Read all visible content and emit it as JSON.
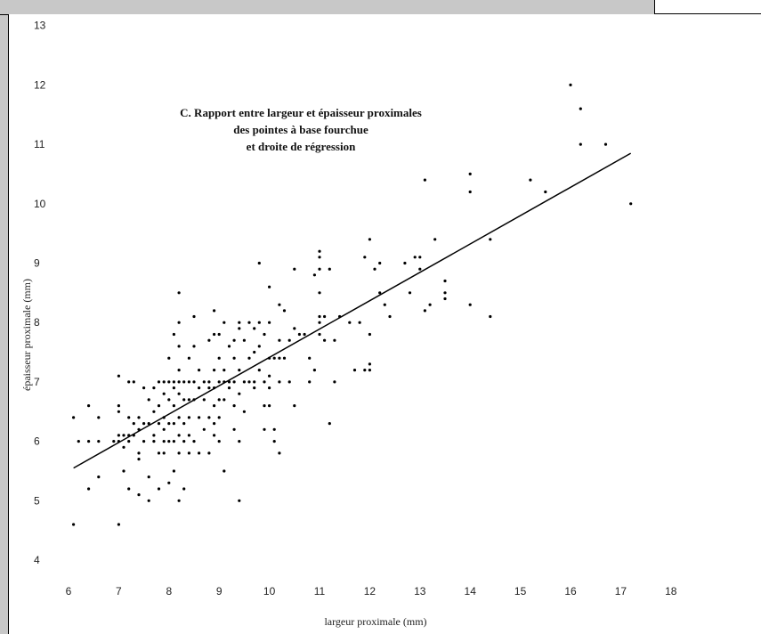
{
  "chart_data": {
    "type": "scatter",
    "title_lines": [
      "C. Rapport entre largeur et épaisseur proximales",
      "des pointes à base fourchue",
      "et droite de régression"
    ],
    "xlabel": "largeur proximale (mm)",
    "ylabel": "épaisseur proximale (mm)",
    "xlim": [
      6,
      18
    ],
    "ylim": [
      4,
      13
    ],
    "xticks": [
      "6",
      "7",
      "8",
      "9",
      "10",
      "11",
      "12",
      "13",
      "14",
      "15",
      "16",
      "17",
      "18"
    ],
    "yticks": [
      "4",
      "5",
      "6",
      "7",
      "8",
      "9",
      "10",
      "11",
      "12",
      "13"
    ],
    "grid": false,
    "regression": {
      "x": [
        6.1,
        17.2
      ],
      "y": [
        5.55,
        10.85
      ]
    },
    "points": [
      [
        6.1,
        6.4
      ],
      [
        6.1,
        4.6
      ],
      [
        6.2,
        6.0
      ],
      [
        6.4,
        6.6
      ],
      [
        6.4,
        6.0
      ],
      [
        6.4,
        5.2
      ],
      [
        6.6,
        6.4
      ],
      [
        6.6,
        5.4
      ],
      [
        6.6,
        6.0
      ],
      [
        6.9,
        6.0
      ],
      [
        7.0,
        7.1
      ],
      [
        7.0,
        6.6
      ],
      [
        7.0,
        6.5
      ],
      [
        7.0,
        6.1
      ],
      [
        7.0,
        6.0
      ],
      [
        7.0,
        4.6
      ],
      [
        7.1,
        6.1
      ],
      [
        7.1,
        5.9
      ],
      [
        7.1,
        5.5
      ],
      [
        7.2,
        7.0
      ],
      [
        7.2,
        6.4
      ],
      [
        7.2,
        6.1
      ],
      [
        7.2,
        6.0
      ],
      [
        7.2,
        5.2
      ],
      [
        7.3,
        7.0
      ],
      [
        7.3,
        6.3
      ],
      [
        7.3,
        6.1
      ],
      [
        7.4,
        6.4
      ],
      [
        7.4,
        6.2
      ],
      [
        7.4,
        5.8
      ],
      [
        7.4,
        5.1
      ],
      [
        7.4,
        5.7
      ],
      [
        7.5,
        6.3
      ],
      [
        7.5,
        6.0
      ],
      [
        7.5,
        6.9
      ],
      [
        7.6,
        6.3
      ],
      [
        7.6,
        6.7
      ],
      [
        7.6,
        5.4
      ],
      [
        7.6,
        5.0
      ],
      [
        7.7,
        6.9
      ],
      [
        7.7,
        6.5
      ],
      [
        7.7,
        6.1
      ],
      [
        7.7,
        6.0
      ],
      [
        7.8,
        7.0
      ],
      [
        7.8,
        6.6
      ],
      [
        7.8,
        6.3
      ],
      [
        7.8,
        5.8
      ],
      [
        7.8,
        5.2
      ],
      [
        7.9,
        7.0
      ],
      [
        7.9,
        6.8
      ],
      [
        7.9,
        6.4
      ],
      [
        7.9,
        6.2
      ],
      [
        7.9,
        6.0
      ],
      [
        7.9,
        5.8
      ],
      [
        8.0,
        7.4
      ],
      [
        8.0,
        7.0
      ],
      [
        8.0,
        6.7
      ],
      [
        8.0,
        6.3
      ],
      [
        8.0,
        6.0
      ],
      [
        8.0,
        5.3
      ],
      [
        8.1,
        7.8
      ],
      [
        8.1,
        7.0
      ],
      [
        8.1,
        6.9
      ],
      [
        8.1,
        6.6
      ],
      [
        8.1,
        6.3
      ],
      [
        8.1,
        6.0
      ],
      [
        8.1,
        5.5
      ],
      [
        8.2,
        8.0
      ],
      [
        8.2,
        7.6
      ],
      [
        8.2,
        7.2
      ],
      [
        8.2,
        7.0
      ],
      [
        8.2,
        6.8
      ],
      [
        8.2,
        6.4
      ],
      [
        8.2,
        6.1
      ],
      [
        8.2,
        5.8
      ],
      [
        8.2,
        5.0
      ],
      [
        8.3,
        7.0
      ],
      [
        8.3,
        6.7
      ],
      [
        8.3,
        6.3
      ],
      [
        8.3,
        6.0
      ],
      [
        8.3,
        5.2
      ],
      [
        8.2,
        8.5
      ],
      [
        8.4,
        7.4
      ],
      [
        8.4,
        7.0
      ],
      [
        8.4,
        6.7
      ],
      [
        8.4,
        6.4
      ],
      [
        8.4,
        6.1
      ],
      [
        8.4,
        5.8
      ],
      [
        8.5,
        8.1
      ],
      [
        8.5,
        7.6
      ],
      [
        8.5,
        7.0
      ],
      [
        8.5,
        6.7
      ],
      [
        8.5,
        6.0
      ],
      [
        8.6,
        7.2
      ],
      [
        8.6,
        6.9
      ],
      [
        8.6,
        6.4
      ],
      [
        8.6,
        5.8
      ],
      [
        8.7,
        7.0
      ],
      [
        8.7,
        6.7
      ],
      [
        8.7,
        6.2
      ],
      [
        8.8,
        7.7
      ],
      [
        8.8,
        7.0
      ],
      [
        8.8,
        6.9
      ],
      [
        8.8,
        6.4
      ],
      [
        8.8,
        5.8
      ],
      [
        8.9,
        8.2
      ],
      [
        8.9,
        7.8
      ],
      [
        8.9,
        7.2
      ],
      [
        8.9,
        6.9
      ],
      [
        8.9,
        6.6
      ],
      [
        8.9,
        6.3
      ],
      [
        8.9,
        6.1
      ],
      [
        9.0,
        7.8
      ],
      [
        9.0,
        7.4
      ],
      [
        9.0,
        7.0
      ],
      [
        9.0,
        6.7
      ],
      [
        9.0,
        6.4
      ],
      [
        9.0,
        6.0
      ],
      [
        9.1,
        8.0
      ],
      [
        9.1,
        7.2
      ],
      [
        9.1,
        7.0
      ],
      [
        9.1,
        6.7
      ],
      [
        9.1,
        5.5
      ],
      [
        9.2,
        7.6
      ],
      [
        9.2,
        7.0
      ],
      [
        9.2,
        6.9
      ],
      [
        9.3,
        7.7
      ],
      [
        9.3,
        7.4
      ],
      [
        9.3,
        7.0
      ],
      [
        9.3,
        6.6
      ],
      [
        9.3,
        6.2
      ],
      [
        9.4,
        8.0
      ],
      [
        9.4,
        7.9
      ],
      [
        9.4,
        7.2
      ],
      [
        9.4,
        6.8
      ],
      [
        9.4,
        6.0
      ],
      [
        9.4,
        5.0
      ],
      [
        9.5,
        7.7
      ],
      [
        9.5,
        7.0
      ],
      [
        9.5,
        6.5
      ],
      [
        9.6,
        8.0
      ],
      [
        9.6,
        7.4
      ],
      [
        9.6,
        7.0
      ],
      [
        9.7,
        7.9
      ],
      [
        9.7,
        7.5
      ],
      [
        9.7,
        7.0
      ],
      [
        9.7,
        6.9
      ],
      [
        9.8,
        9.0
      ],
      [
        9.8,
        8.0
      ],
      [
        9.8,
        7.6
      ],
      [
        9.8,
        7.2
      ],
      [
        9.9,
        7.8
      ],
      [
        9.9,
        7.0
      ],
      [
        9.9,
        6.6
      ],
      [
        9.9,
        6.2
      ],
      [
        10.0,
        8.6
      ],
      [
        10.0,
        8.0
      ],
      [
        10.0,
        7.4
      ],
      [
        10.0,
        7.1
      ],
      [
        10.0,
        6.9
      ],
      [
        10.0,
        6.6
      ],
      [
        10.1,
        7.4
      ],
      [
        10.1,
        6.2
      ],
      [
        10.1,
        6.0
      ],
      [
        10.2,
        8.3
      ],
      [
        10.2,
        7.7
      ],
      [
        10.2,
        7.4
      ],
      [
        10.2,
        7.0
      ],
      [
        10.2,
        5.8
      ],
      [
        10.3,
        8.2
      ],
      [
        10.3,
        7.4
      ],
      [
        10.4,
        7.0
      ],
      [
        10.4,
        7.7
      ],
      [
        10.5,
        8.9
      ],
      [
        10.5,
        7.9
      ],
      [
        10.5,
        6.6
      ],
      [
        10.6,
        7.8
      ],
      [
        10.7,
        7.8
      ],
      [
        10.8,
        7.0
      ],
      [
        10.8,
        7.4
      ],
      [
        10.9,
        8.8
      ],
      [
        10.9,
        7.2
      ],
      [
        11.0,
        9.2
      ],
      [
        11.0,
        8.9
      ],
      [
        11.0,
        8.5
      ],
      [
        11.0,
        8.1
      ],
      [
        11.0,
        8.0
      ],
      [
        11.0,
        7.8
      ],
      [
        11.0,
        9.1
      ],
      [
        11.1,
        8.1
      ],
      [
        11.1,
        7.7
      ],
      [
        11.2,
        8.9
      ],
      [
        11.2,
        6.3
      ],
      [
        11.3,
        7.7
      ],
      [
        11.3,
        7.0
      ],
      [
        11.4,
        8.1
      ],
      [
        11.6,
        8.0
      ],
      [
        11.7,
        7.2
      ],
      [
        11.8,
        8.0
      ],
      [
        11.9,
        9.1
      ],
      [
        11.9,
        7.2
      ],
      [
        12.0,
        9.4
      ],
      [
        12.0,
        7.8
      ],
      [
        12.0,
        7.3
      ],
      [
        12.0,
        7.2
      ],
      [
        12.1,
        8.9
      ],
      [
        12.2,
        9.0
      ],
      [
        12.2,
        8.5
      ],
      [
        12.3,
        8.3
      ],
      [
        12.4,
        8.1
      ],
      [
        12.7,
        9.0
      ],
      [
        12.8,
        8.5
      ],
      [
        12.9,
        9.1
      ],
      [
        13.0,
        9.1
      ],
      [
        13.0,
        8.9
      ],
      [
        13.1,
        10.4
      ],
      [
        13.1,
        8.2
      ],
      [
        13.2,
        8.3
      ],
      [
        13.3,
        9.4
      ],
      [
        13.5,
        8.7
      ],
      [
        13.5,
        8.5
      ],
      [
        13.5,
        8.4
      ],
      [
        14.0,
        10.5
      ],
      [
        14.0,
        10.2
      ],
      [
        14.0,
        8.3
      ],
      [
        14.4,
        9.4
      ],
      [
        14.4,
        8.1
      ],
      [
        15.2,
        10.4
      ],
      [
        15.5,
        10.2
      ],
      [
        16.0,
        12.0
      ],
      [
        16.2,
        11.6
      ],
      [
        16.2,
        11.0
      ],
      [
        16.7,
        11.0
      ],
      [
        17.2,
        10.0
      ]
    ]
  }
}
